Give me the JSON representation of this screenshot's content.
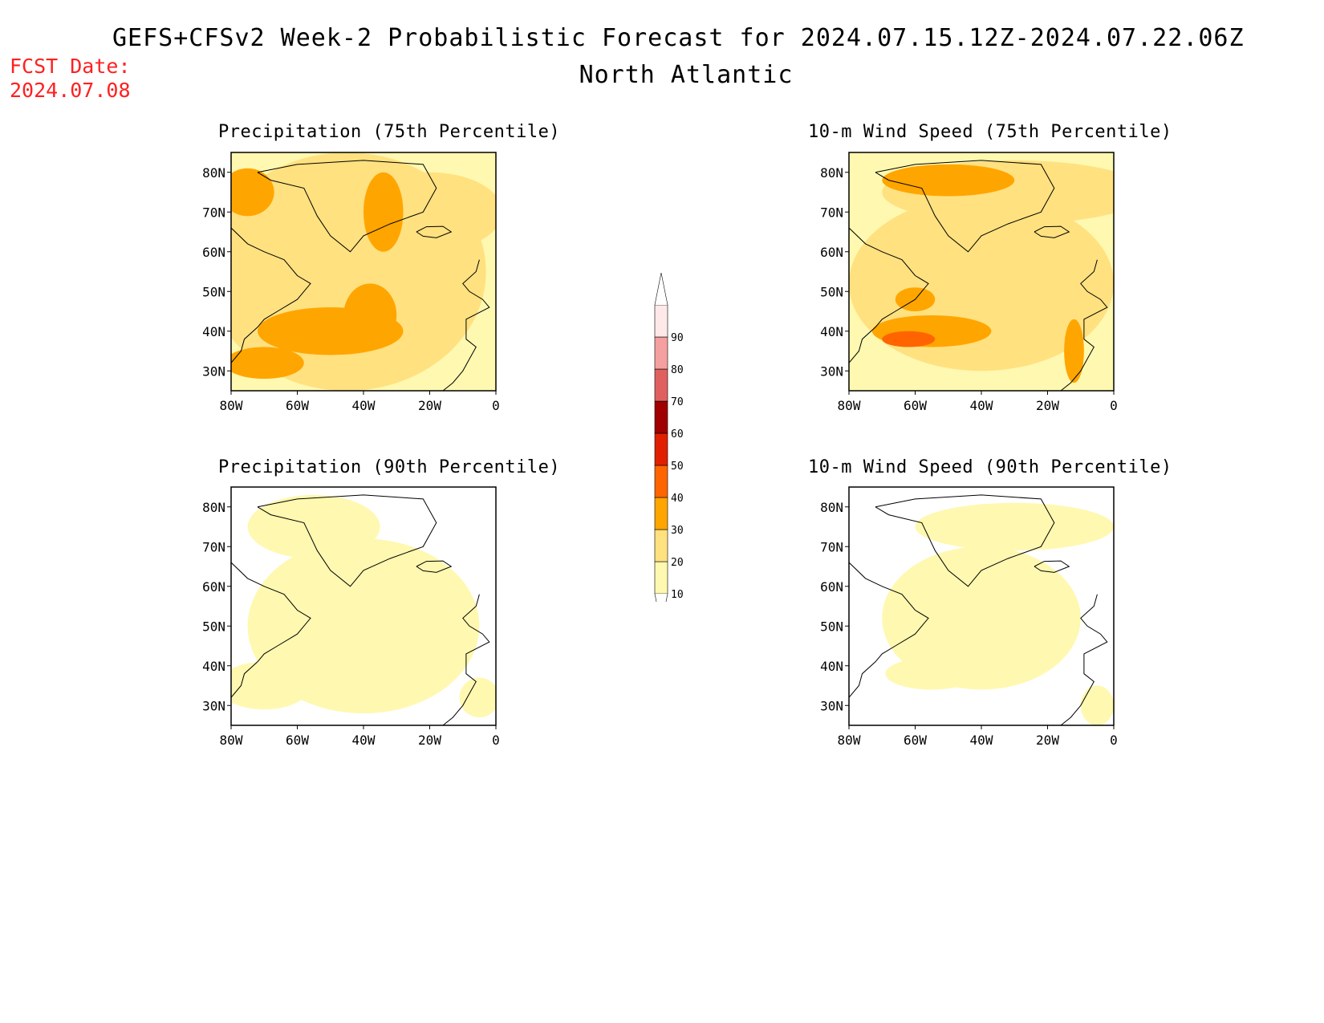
{
  "header": {
    "title": "GEFS+CFSv2 Week-2 Probabilistic Forecast for 2024.07.15.12Z-2024.07.22.06Z",
    "subtitle": "North Atlantic",
    "fcst_label": "FCST Date:",
    "fcst_date": "2024.07.08"
  },
  "panels": [
    {
      "title": "Precipitation (75th Percentile)"
    },
    {
      "title": "10-m Wind Speed (75th Percentile)"
    },
    {
      "title": "Precipitation (90th Percentile)"
    },
    {
      "title": "10-m Wind Speed (90th Percentile)"
    }
  ],
  "axes": {
    "lat_ticks": [
      "80N",
      "70N",
      "60N",
      "50N",
      "40N",
      "30N"
    ],
    "lon_ticks": [
      "80W",
      "60W",
      "40W",
      "20W",
      "0"
    ]
  },
  "colorbar": {
    "levels": [
      "10",
      "20",
      "30",
      "40",
      "50",
      "60",
      "70",
      "80",
      "90"
    ],
    "colors": [
      "#fff8b0",
      "#ffe180",
      "#ffa500",
      "#ff6400",
      "#e02000",
      "#a00000",
      "#e06060",
      "#f4a0a0",
      "#ffe8e8"
    ]
  }
}
